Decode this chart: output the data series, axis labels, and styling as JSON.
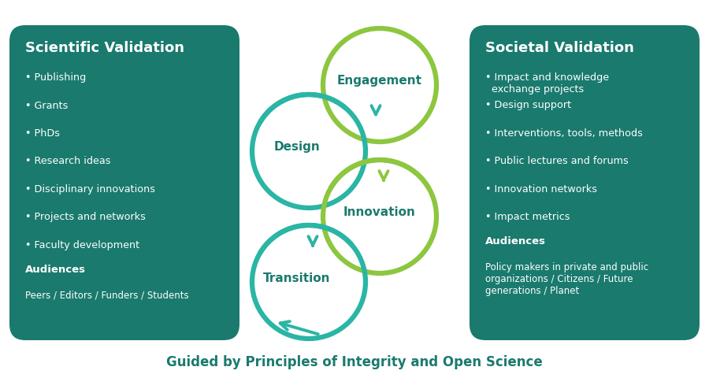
{
  "bg_color": "#ffffff",
  "box_color": "#1a7a6e",
  "left_box": {
    "title": "Scientific Validation",
    "items": [
      "Publishing",
      "Grants",
      "PhDs",
      "Research ideas",
      "Disciplinary innovations",
      "Projects and networks",
      "Faculty development"
    ],
    "audiences_label": "Audiences",
    "audiences_text": "Peers / Editors / Funders / Students"
  },
  "right_box": {
    "title": "Societal Validation",
    "items": [
      "Impact and knowledge\n  exchange projects",
      "Design support",
      "Interventions, tools, methods",
      "Public lectures and forums",
      "Innovation networks",
      "Impact metrics"
    ],
    "audiences_label": "Audiences",
    "audiences_text": "Policy makers in private and public\norganizations / Citizens / Future\ngenerations / Planet"
  },
  "lime_color": "#8dc63f",
  "teal_color": "#2ab5a5",
  "dark_teal": "#1a7a6e",
  "footer": "Guided by Principles of Integrity and Open Science"
}
